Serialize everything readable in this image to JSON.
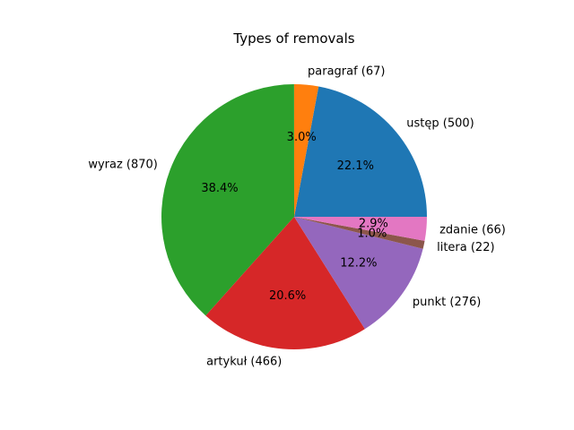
{
  "chart_data": {
    "type": "pie",
    "title": "Types of removals",
    "slices": [
      {
        "label": "ustęp (500)",
        "value": 500,
        "pct_label": "22.1%",
        "color": "#1f77b4"
      },
      {
        "label": "paragraf (67)",
        "value": 67,
        "pct_label": "3.0%",
        "color": "#ff7f0e"
      },
      {
        "label": "wyraz (870)",
        "value": 870,
        "pct_label": "38.4%",
        "color": "#2ca02c"
      },
      {
        "label": "artykuł (466)",
        "value": 466,
        "pct_label": "20.6%",
        "color": "#d62728"
      },
      {
        "label": "punkt (276)",
        "value": 276,
        "pct_label": "12.2%",
        "color": "#9467bd"
      },
      {
        "label": "litera (22)",
        "value": 22,
        "pct_label": "1.0%",
        "color": "#8c564b"
      },
      {
        "label": "zdanie (66)",
        "value": 66,
        "pct_label": "2.9%",
        "color": "#e377c2"
      }
    ],
    "start_angle_deg": 0,
    "direction": "counterclockwise",
    "legend": "none"
  }
}
